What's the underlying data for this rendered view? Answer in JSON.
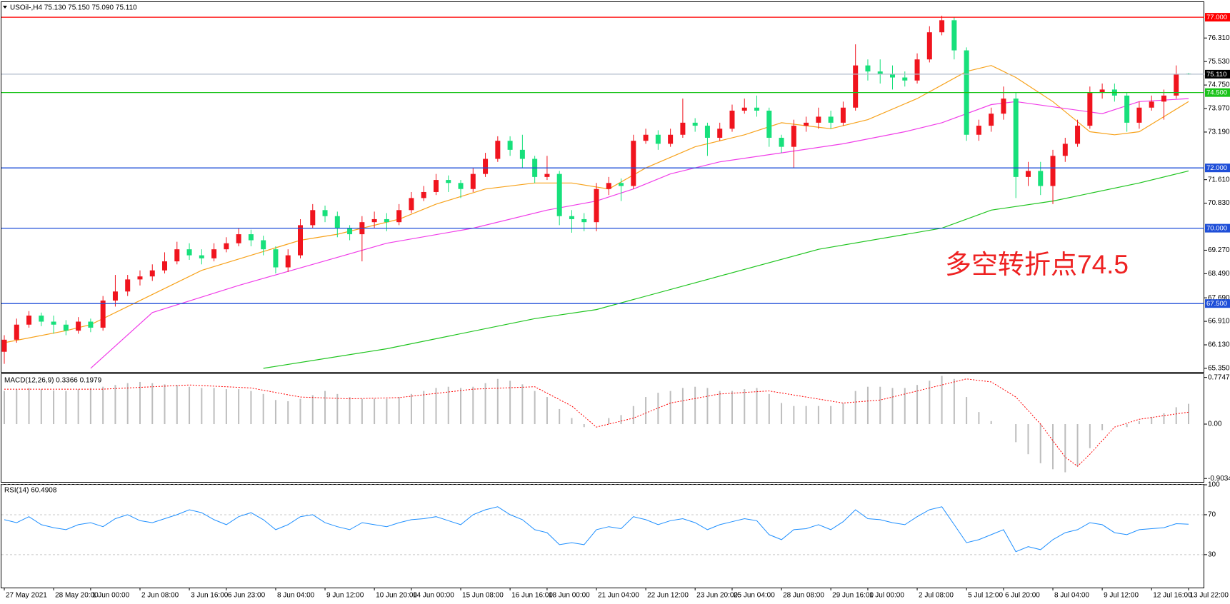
{
  "chart_data": [
    {
      "type": "candlestick",
      "title": "USOil-,H4  75.130 75.150 75.090 75.110",
      "annotation": "多空转折点74.5",
      "annotation_color": "#ee2222",
      "up_color": "#f0141e",
      "down_color": "#17e07b",
      "ylim": [
        65.23,
        77.5
      ],
      "yticks": [
        {
          "value": 76.31,
          "label": "76.310"
        },
        {
          "value": 75.53,
          "label": "75.530"
        },
        {
          "value": 74.75,
          "label": "74.750"
        },
        {
          "value": 73.97,
          "label": "73.970"
        },
        {
          "value": 73.19,
          "label": "73.190"
        },
        {
          "value": 71.61,
          "label": "71.610"
        },
        {
          "value": 70.83,
          "label": "70.830"
        },
        {
          "value": 69.27,
          "label": "69.270"
        },
        {
          "value": 68.49,
          "label": "68.490"
        },
        {
          "value": 67.69,
          "label": "67.690"
        },
        {
          "value": 66.91,
          "label": "66.910"
        },
        {
          "value": 66.13,
          "label": "66.130"
        },
        {
          "value": 65.35,
          "label": "65.350"
        }
      ],
      "levels": [
        {
          "value": 77,
          "label": "77.000",
          "color": "#ff0000",
          "label_background": "#ff0000"
        },
        {
          "value": 75.11,
          "label": "75.110",
          "color": "#b0bccb",
          "label_background": "#000000"
        },
        {
          "value": 74.5,
          "label": "74.500",
          "color": "#19c319",
          "label_background": "#19c319"
        },
        {
          "value": 72,
          "label": "72.000",
          "color": "#1f4fd8",
          "label_background": "#1f4fd8"
        },
        {
          "value": 70,
          "label": "70.000",
          "color": "#1f4fd8",
          "label_background": "#1f4fd8"
        },
        {
          "value": 67.5,
          "label": "67.500",
          "color": "#1f4fd8",
          "label_background": "#1f4fd8"
        }
      ],
      "categories": [
        "27 May 2021",
        null,
        null,
        null,
        "28 May 20:00",
        null,
        null,
        "1 Jun 00:00",
        null,
        null,
        null,
        "2 Jun 08:00",
        null,
        null,
        null,
        "3 Jun 16:00",
        null,
        null,
        "6 Jun 23:00",
        null,
        null,
        null,
        "8 Jun 04:00",
        null,
        null,
        null,
        "9 Jun 12:00",
        null,
        null,
        null,
        "10 Jun 20:00",
        null,
        null,
        "14 Jun 00:00",
        null,
        null,
        null,
        "15 Jun 08:00",
        null,
        null,
        null,
        "16 Jun 16:00",
        null,
        null,
        "18 Jun 00:00",
        null,
        null,
        null,
        "21 Jun 04:00",
        null,
        null,
        null,
        "22 Jun 12:00",
        null,
        null,
        null,
        "23 Jun 20:00",
        null,
        null,
        "25 Jun 04:00",
        null,
        null,
        null,
        "28 Jun 08:00",
        null,
        null,
        null,
        "29 Jun 16:00",
        null,
        null,
        "1 Jul 00:00",
        null,
        null,
        null,
        "2 Jul 08:00",
        null,
        null,
        null,
        "5 Jul 12:00",
        null,
        null,
        "6 Jul 20:00",
        null,
        null,
        null,
        "8 Jul 04:00",
        null,
        null,
        null,
        "9 Jul 12:00",
        null,
        null,
        null,
        "12 Jul 16:00",
        null,
        null,
        "13 Jul 22:00"
      ],
      "candles": [
        [
          65.9,
          66.45,
          65.5,
          66.3
        ],
        [
          66.3,
          67.0,
          66.2,
          66.8
        ],
        [
          66.8,
          67.25,
          66.7,
          67.1
        ],
        [
          67.1,
          67.2,
          66.75,
          66.9
        ],
        [
          66.9,
          67.1,
          66.5,
          66.8
        ],
        [
          66.8,
          66.95,
          66.45,
          66.6
        ],
        [
          66.6,
          67.05,
          66.5,
          66.9
        ],
        [
          66.9,
          67.0,
          66.55,
          66.7
        ],
        [
          66.7,
          67.75,
          66.6,
          67.6
        ],
        [
          67.6,
          68.45,
          67.4,
          67.9
        ],
        [
          67.9,
          68.45,
          67.75,
          68.3
        ],
        [
          68.3,
          68.6,
          68.1,
          68.4
        ],
        [
          68.4,
          68.8,
          68.25,
          68.6
        ],
        [
          68.6,
          69.2,
          68.5,
          68.9
        ],
        [
          68.9,
          69.55,
          68.8,
          69.3
        ],
        [
          69.3,
          69.5,
          68.95,
          69.1
        ],
        [
          69.1,
          69.3,
          68.8,
          69.0
        ],
        [
          69.0,
          69.5,
          68.9,
          69.3
        ],
        [
          69.3,
          69.7,
          69.2,
          69.5
        ],
        [
          69.5,
          70.0,
          69.4,
          69.8
        ],
        [
          69.8,
          69.95,
          69.4,
          69.6
        ],
        [
          69.6,
          69.75,
          69.1,
          69.3
        ],
        [
          69.3,
          69.4,
          68.5,
          68.7
        ],
        [
          68.7,
          69.3,
          68.55,
          69.1
        ],
        [
          69.1,
          70.3,
          69.0,
          70.1
        ],
        [
          70.1,
          70.8,
          70.0,
          70.6
        ],
        [
          70.6,
          70.75,
          70.2,
          70.4
        ],
        [
          70.4,
          70.55,
          69.7,
          70.0
        ],
        [
          70.0,
          70.1,
          69.6,
          69.8
        ],
        [
          69.8,
          70.4,
          68.9,
          70.2
        ],
        [
          70.2,
          70.55,
          70.0,
          70.3
        ],
        [
          70.3,
          70.5,
          69.9,
          70.2
        ],
        [
          70.2,
          70.8,
          70.1,
          70.6
        ],
        [
          70.6,
          71.2,
          70.5,
          71.0
        ],
        [
          71.0,
          71.4,
          70.9,
          71.2
        ],
        [
          71.2,
          71.8,
          71.1,
          71.6
        ],
        [
          71.6,
          71.75,
          71.2,
          71.5
        ],
        [
          71.5,
          71.6,
          71.0,
          71.3
        ],
        [
          71.3,
          72.0,
          71.2,
          71.8
        ],
        [
          71.8,
          72.5,
          71.7,
          72.3
        ],
        [
          72.3,
          73.05,
          72.2,
          72.9
        ],
        [
          72.9,
          73.05,
          72.4,
          72.6
        ],
        [
          72.6,
          73.1,
          72.0,
          72.3
        ],
        [
          72.3,
          72.4,
          71.5,
          71.7
        ],
        [
          71.7,
          72.4,
          71.6,
          71.8
        ],
        [
          71.8,
          71.9,
          70.1,
          70.4
        ],
        [
          70.4,
          70.6,
          69.85,
          70.3
        ],
        [
          70.3,
          70.5,
          69.9,
          70.2
        ],
        [
          70.2,
          71.5,
          69.9,
          71.3
        ],
        [
          71.3,
          71.7,
          71.1,
          71.5
        ],
        [
          71.5,
          71.65,
          70.9,
          71.4
        ],
        [
          71.4,
          73.1,
          71.3,
          72.9
        ],
        [
          72.9,
          73.3,
          72.8,
          73.1
        ],
        [
          73.1,
          73.25,
          72.6,
          72.8
        ],
        [
          72.8,
          73.3,
          72.7,
          73.1
        ],
        [
          73.1,
          74.3,
          73.0,
          73.5
        ],
        [
          73.5,
          73.65,
          73.2,
          73.4
        ],
        [
          73.4,
          73.5,
          72.4,
          73.0
        ],
        [
          73.0,
          73.5,
          72.9,
          73.3
        ],
        [
          73.3,
          74.1,
          73.2,
          73.9
        ],
        [
          73.9,
          74.3,
          73.8,
          74.0
        ],
        [
          74.0,
          74.4,
          73.7,
          73.9
        ],
        [
          73.9,
          74.0,
          72.7,
          73.0
        ],
        [
          73.0,
          73.1,
          72.5,
          72.7
        ],
        [
          72.7,
          73.6,
          72.0,
          73.4
        ],
        [
          73.4,
          73.7,
          73.2,
          73.5
        ],
        [
          73.5,
          74.0,
          73.3,
          73.7
        ],
        [
          73.7,
          73.9,
          73.3,
          73.5
        ],
        [
          73.5,
          74.2,
          73.4,
          74.0
        ],
        [
          74.0,
          76.1,
          73.9,
          75.4
        ],
        [
          75.4,
          75.6,
          74.9,
          75.2
        ],
        [
          75.2,
          75.6,
          74.8,
          75.1
        ],
        [
          75.1,
          75.4,
          74.6,
          75.0
        ],
        [
          75.0,
          75.2,
          74.7,
          74.9
        ],
        [
          74.9,
          75.8,
          74.8,
          75.6
        ],
        [
          75.6,
          76.7,
          75.5,
          76.5
        ],
        [
          76.5,
          77.05,
          76.4,
          76.9
        ],
        [
          76.9,
          77.0,
          75.6,
          75.9
        ],
        [
          75.9,
          76.0,
          72.9,
          73.1
        ],
        [
          73.1,
          73.6,
          72.9,
          73.4
        ],
        [
          73.4,
          74.0,
          73.2,
          73.8
        ],
        [
          73.8,
          74.7,
          73.6,
          74.3
        ],
        [
          74.3,
          74.5,
          71.0,
          71.7
        ],
        [
          71.7,
          72.2,
          71.4,
          71.9
        ],
        [
          71.9,
          72.2,
          71.1,
          71.4
        ],
        [
          71.4,
          72.6,
          70.8,
          72.4
        ],
        [
          72.4,
          73.0,
          72.2,
          72.8
        ],
        [
          72.8,
          73.6,
          72.7,
          73.4
        ],
        [
          73.4,
          74.7,
          73.3,
          74.5
        ],
        [
          74.5,
          74.8,
          74.3,
          74.6
        ],
        [
          74.6,
          74.8,
          74.2,
          74.4
        ],
        [
          74.4,
          74.5,
          73.2,
          73.5
        ],
        [
          73.5,
          74.2,
          73.3,
          74.0
        ],
        [
          74.0,
          74.4,
          73.9,
          74.2
        ],
        [
          74.2,
          74.6,
          73.6,
          74.4
        ],
        [
          74.4,
          75.4,
          74.3,
          75.1
        ],
        [
          75.13,
          75.15,
          75.09,
          75.11
        ]
      ],
      "series": [
        {
          "color": "#f7a21b",
          "x": [
            0,
            5,
            7,
            11,
            16,
            20,
            24,
            27,
            32,
            35,
            39,
            43,
            46,
            49,
            52,
            56,
            60,
            63,
            67,
            70,
            74,
            78,
            80,
            82,
            85,
            88,
            90,
            92,
            94,
            96
          ],
          "values": [
            66.2,
            66.6,
            66.8,
            67.6,
            68.6,
            69.1,
            69.6,
            69.8,
            70.3,
            70.8,
            71.3,
            71.5,
            71.5,
            71.3,
            72.0,
            72.7,
            73.1,
            73.5,
            73.3,
            73.6,
            74.3,
            75.2,
            75.4,
            75.0,
            74.2,
            73.2,
            73.1,
            73.2,
            73.7,
            74.2
          ]
        },
        {
          "color": "#f03ee8",
          "x": [
            7,
            12,
            19,
            25,
            31,
            38,
            44,
            48,
            51,
            54,
            58,
            63,
            68,
            73,
            76,
            80,
            82,
            89,
            92,
            96
          ],
          "values": [
            65.35,
            67.2,
            68.1,
            68.8,
            69.5,
            70.0,
            70.6,
            70.9,
            71.3,
            71.8,
            72.2,
            72.5,
            72.8,
            73.2,
            73.5,
            74.1,
            74.2,
            73.8,
            74.2,
            74.3
          ]
        },
        {
          "color": "#1fc41f",
          "x": [
            21,
            31,
            43,
            48,
            57,
            66,
            76,
            80,
            85,
            92,
            96
          ],
          "values": [
            65.35,
            66.0,
            67.0,
            67.3,
            68.3,
            69.3,
            70.0,
            70.6,
            70.9,
            71.5,
            71.9
          ]
        }
      ]
    },
    {
      "type": "macd",
      "title": "MACD(12,26,9) 0.3366 0.1979",
      "ylim": [
        -0.96,
        0.83
      ],
      "yticks": [
        0.7747,
        {
          "value": 0,
          "label": "0.00"
        },
        -0.9034
      ],
      "histogram": {
        "color": "#bdbdbd",
        "values": [
          0.55,
          0.58,
          0.6,
          0.58,
          0.56,
          0.55,
          0.58,
          0.6,
          0.62,
          0.65,
          0.68,
          0.7,
          0.68,
          0.66,
          0.65,
          0.62,
          0.6,
          0.6,
          0.58,
          0.58,
          0.55,
          0.5,
          0.4,
          0.38,
          0.42,
          0.48,
          0.55,
          0.5,
          0.45,
          0.42,
          0.42,
          0.42,
          0.45,
          0.5,
          0.55,
          0.6,
          0.62,
          0.6,
          0.62,
          0.68,
          0.75,
          0.72,
          0.66,
          0.55,
          0.45,
          0.25,
          0.1,
          -0.05,
          0.0,
          0.1,
          0.15,
          0.3,
          0.45,
          0.52,
          0.55,
          0.6,
          0.62,
          0.6,
          0.55,
          0.55,
          0.58,
          0.6,
          0.5,
          0.35,
          0.3,
          0.3,
          0.3,
          0.3,
          0.35,
          0.55,
          0.62,
          0.62,
          0.6,
          0.6,
          0.65,
          0.72,
          0.8,
          0.75,
          0.45,
          0.2,
          0.05,
          0.0,
          -0.3,
          -0.5,
          -0.65,
          -0.75,
          -0.8,
          -0.7,
          -0.4,
          -0.1,
          0.0,
          -0.05,
          0.05,
          0.12,
          0.18,
          0.28,
          0.3366
        ]
      },
      "signal": {
        "color": "#ff0000",
        "x": [
          0,
          8,
          15,
          20,
          24,
          28,
          32,
          38,
          43,
          46,
          48,
          51,
          54,
          58,
          62,
          65,
          68,
          71,
          75,
          78,
          80,
          82,
          84,
          86,
          87,
          88,
          90,
          92,
          94,
          96
        ],
        "values": [
          0.58,
          0.58,
          0.65,
          0.6,
          0.45,
          0.42,
          0.44,
          0.58,
          0.62,
          0.3,
          -0.05,
          0.1,
          0.35,
          0.5,
          0.55,
          0.45,
          0.35,
          0.4,
          0.6,
          0.75,
          0.7,
          0.45,
          0.0,
          -0.55,
          -0.7,
          -0.5,
          -0.05,
          0.08,
          0.14,
          0.1979
        ]
      }
    },
    {
      "type": "line",
      "title": "RSI(14) 60.4908",
      "color": "#1e8fff",
      "grid": true,
      "ylim": [
        -3,
        100
      ],
      "yticks": [
        100,
        70,
        30
      ],
      "values": [
        65,
        62,
        68,
        60,
        57,
        55,
        60,
        62,
        58,
        66,
        70,
        64,
        62,
        66,
        70,
        75,
        72,
        65,
        60,
        68,
        72,
        65,
        55,
        60,
        68,
        70,
        62,
        58,
        55,
        62,
        60,
        58,
        62,
        65,
        66,
        68,
        64,
        60,
        70,
        75,
        78,
        70,
        65,
        55,
        52,
        40,
        42,
        40,
        55,
        58,
        56,
        68,
        65,
        60,
        64,
        66,
        62,
        55,
        60,
        63,
        66,
        64,
        50,
        45,
        55,
        56,
        60,
        55,
        63,
        75,
        66,
        65,
        62,
        60,
        68,
        75,
        78,
        60,
        42,
        45,
        50,
        55,
        33,
        38,
        35,
        45,
        52,
        55,
        62,
        60,
        52,
        50,
        55,
        56,
        57,
        61,
        60.4908
      ]
    }
  ]
}
